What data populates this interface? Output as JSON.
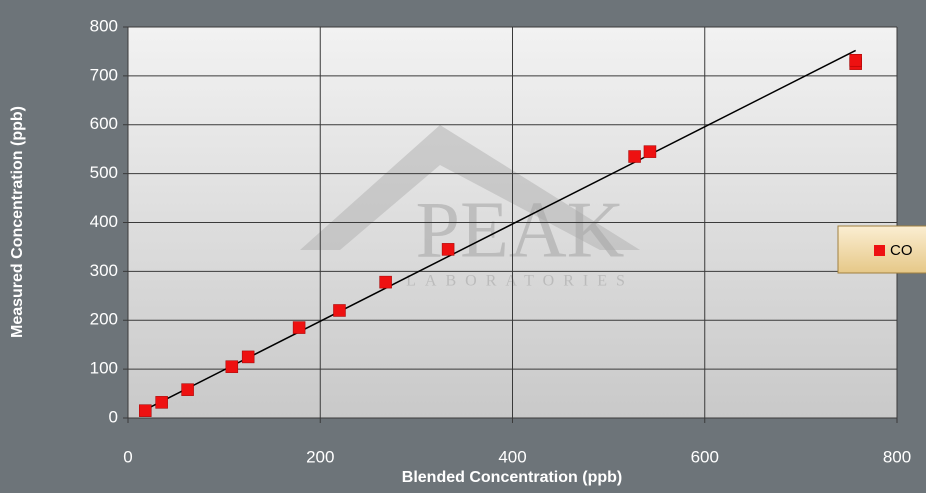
{
  "chart_data": {
    "type": "scatter",
    "x_label": "Blended Concentration (ppb)",
    "y_label": "Measured Concentration (ppb)",
    "watermark": {
      "title": "PEAK",
      "subtitle": "LABORATORIES"
    },
    "series": [
      {
        "name": "CO",
        "color": "#ee1111",
        "x": [
          18,
          35,
          62,
          108,
          125,
          178,
          220,
          268,
          333,
          527,
          543,
          757,
          757
        ],
        "values": [
          15,
          32,
          58,
          105,
          125,
          185,
          220,
          278,
          345,
          535,
          545,
          725,
          732
        ]
      }
    ],
    "trendline": {
      "color": "#000000",
      "x": [
        18,
        757
      ],
      "values": [
        17,
        752
      ]
    },
    "xlim": [
      0,
      800
    ],
    "xticks": [
      0,
      200,
      400,
      600,
      800
    ],
    "ylim": [
      0,
      800
    ],
    "yticks": [
      0,
      100,
      200,
      300,
      400,
      500,
      600,
      700,
      800
    ],
    "grid": true,
    "legend": "right"
  }
}
